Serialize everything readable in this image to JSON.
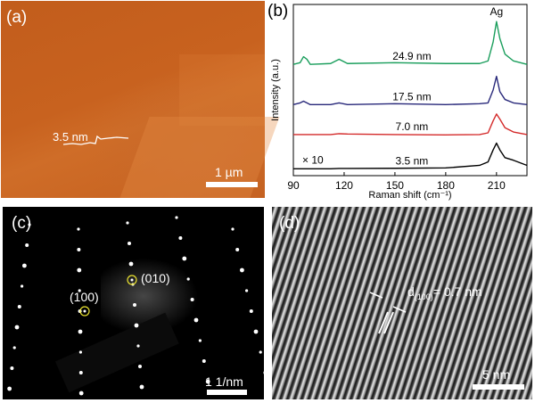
{
  "panel_a": {
    "label": "(a)",
    "height_annotation": "3.5 nm",
    "scale_bar": "1 µm"
  },
  "panel_b": {
    "label": "(b)"
  },
  "chart_data": {
    "type": "line",
    "xlabel": "Raman shift (cm⁻¹)",
    "ylabel": "Intensity (a.u.)",
    "xlim": [
      90,
      228
    ],
    "ylim": [
      0,
      100
    ],
    "xticks": [
      "90",
      "120",
      "150",
      "180",
      "210"
    ],
    "xtick_values": [
      90,
      120,
      150,
      180,
      210
    ],
    "annotations": {
      "peak": "Ag",
      "scale": "× 10"
    },
    "x": [
      90,
      94,
      96,
      98,
      100,
      112,
      117,
      122,
      150,
      180,
      200,
      205,
      208,
      210,
      212,
      215,
      220,
      228
    ],
    "series": [
      {
        "name": "24.9 nm",
        "color": "#1a9e5c",
        "values": [
          65,
          66,
          69.5,
          68,
          65,
          65.5,
          68,
          65.5,
          66,
          65.5,
          65.5,
          67,
          78,
          90,
          80,
          71,
          67,
          65
        ]
      },
      {
        "name": "17.5 nm",
        "color": "#28287a",
        "values": [
          41.5,
          42.5,
          43.5,
          42.5,
          41.5,
          41.5,
          42.5,
          41.5,
          42,
          41.5,
          42,
          42.5,
          50,
          58,
          49,
          44.5,
          42.5,
          41.5
        ]
      },
      {
        "name": "7.0 nm",
        "color": "#d42a2a",
        "values": [
          24,
          24,
          24,
          24,
          24,
          24,
          24.5,
          24.3,
          24,
          23.8,
          24,
          25,
          32,
          36,
          33,
          28,
          25.5,
          24
        ]
      },
      {
        "name": "3.5 nm",
        "color": "#000000",
        "values": [
          4,
          4,
          4,
          4,
          4,
          4,
          4.2,
          4.2,
          4.3,
          4.5,
          6,
          8,
          15,
          19,
          15,
          10.5,
          9,
          6
        ]
      }
    ]
  },
  "panel_c": {
    "label": "(c)",
    "spot_100": "(100)",
    "spot_010": "(010)",
    "scale_bar": "1 1/nm",
    "circle_color": "#e8e030"
  },
  "panel_d": {
    "label": "(d)",
    "spacing_prefix": "d",
    "spacing_sub": "(100)",
    "spacing_value": "= 0.7 nm",
    "scale_bar": "5 nm"
  }
}
